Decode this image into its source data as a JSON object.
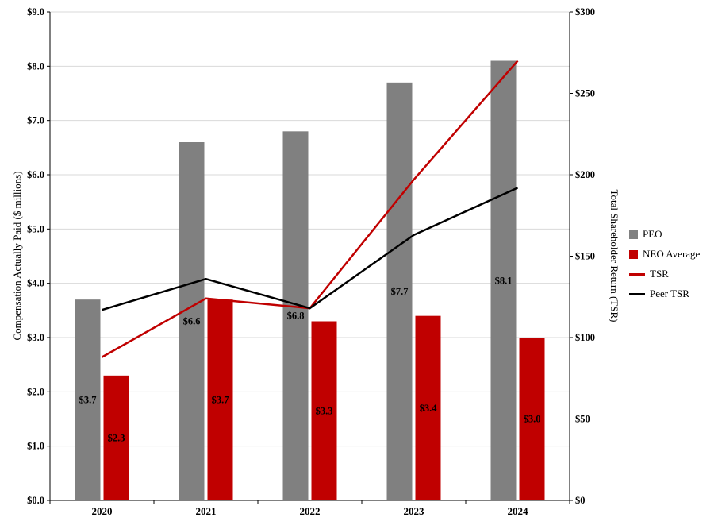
{
  "chart_data": {
    "type": "bar",
    "subtype": "grouped-bar-and-line-combo-dual-axis",
    "title": "",
    "categories": [
      "2020",
      "2021",
      "2022",
      "2023",
      "2024"
    ],
    "bar_series": [
      {
        "name": "PEO",
        "axis": "left",
        "values": [
          3.7,
          6.6,
          6.8,
          7.7,
          8.1
        ],
        "labels": [
          "$3.7",
          "$6.6",
          "$6.8",
          "$7.7",
          "$8.1"
        ]
      },
      {
        "name": "NEO Average",
        "axis": "left",
        "values": [
          2.3,
          3.7,
          3.3,
          3.4,
          3.0
        ],
        "labels": [
          "$2.3",
          "$3.7",
          "$3.3",
          "$3.4",
          "$3.0"
        ]
      }
    ],
    "line_series": [
      {
        "name": "TSR",
        "axis": "right",
        "values": [
          88,
          124,
          118,
          197,
          270
        ]
      },
      {
        "name": "Peer TSR",
        "axis": "right",
        "values": [
          117,
          136,
          118,
          163,
          192
        ]
      }
    ],
    "left_axis": {
      "title": "Compensation Actually Paid ($ millions)",
      "min": 0,
      "max": 9,
      "step": 1,
      "tick_labels": [
        "$0.0",
        "$1.0",
        "$2.0",
        "$3.0",
        "$4.0",
        "$5.0",
        "$6.0",
        "$7.0",
        "$8.0",
        "$9.0"
      ]
    },
    "right_axis": {
      "title": "Total Shareholder Return (TSR)",
      "min": 0,
      "max": 300,
      "step": 50,
      "tick_labels": [
        "$0",
        "$50",
        "$100",
        "$150",
        "$200",
        "$250",
        "$300"
      ]
    },
    "legend": {
      "position": "right",
      "items": [
        "PEO",
        "NEO Average",
        "TSR",
        "Peer TSR"
      ]
    },
    "grid": true,
    "colors": {
      "peo": "#808080",
      "neo": "#C00000",
      "tsr": "#C00000",
      "peer_tsr": "#000000",
      "gridline": "#D9D9D9",
      "axis": "#000000",
      "label_text": "#000000",
      "background": "#FFFFFF"
    }
  }
}
